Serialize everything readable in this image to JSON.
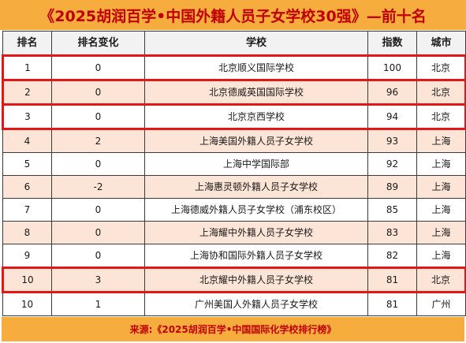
{
  "title": "《2025胡润百学•中国外籍人员子女学校30强》—前十名",
  "headers": [
    "排名",
    "排名变化",
    "学校",
    "指数",
    "城市"
  ],
  "rows": [
    {
      "rank": "1",
      "change": "0",
      "school": "北京顺义国际学校",
      "index": "100",
      "city": "北京"
    },
    {
      "rank": "2",
      "change": "0",
      "school": "北京德威英国国际学校",
      "index": "96",
      "city": "北京"
    },
    {
      "rank": "3",
      "change": "0",
      "school": "北京京西学校",
      "index": "94",
      "city": "北京"
    },
    {
      "rank": "4",
      "change": "2",
      "school": "上海美国外籍人员子女学校",
      "index": "93",
      "city": "上海"
    },
    {
      "rank": "5",
      "change": "0",
      "school": "上海中学国际部",
      "index": "92",
      "city": "上海"
    },
    {
      "rank": "6",
      "change": "-2",
      "school": "上海惠灵顿外籍人员子女学校",
      "index": "89",
      "city": "上海"
    },
    {
      "rank": "7",
      "change": "0",
      "school": "上海德威外籍人员子女学校（浦东校区）",
      "index": "85",
      "city": "上海"
    },
    {
      "rank": "8",
      "change": "0",
      "school": "上海耀中外籍人员子女学校",
      "index": "83",
      "city": "上海"
    },
    {
      "rank": "9",
      "change": "0",
      "school": "上海协和国际外籍人员子女学校",
      "index": "82",
      "city": "上海"
    },
    {
      "rank": "10",
      "change": "3",
      "school": "北京耀中外籍人员子女学校",
      "index": "81",
      "city": "北京"
    },
    {
      "rank": "10",
      "change": "1",
      "school": "广州美国人外籍人员子女学校",
      "index": "81",
      "city": "广州"
    }
  ],
  "footer": "来源:《2025胡润百学•中国国际化学校排行榜》",
  "colors": {
    "banner": "#f7ad3e",
    "title_text": "#c00000",
    "highlight_border": "#e01818",
    "alt_row": "#fce4d6"
  }
}
